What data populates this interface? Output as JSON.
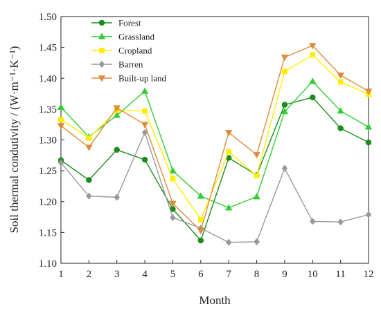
{
  "chart_data": {
    "type": "line",
    "title": "",
    "xlabel": "Month",
    "ylabel": "Soil thermal condutivity / (W·m⁻¹·K⁻¹)",
    "x": [
      1,
      2,
      3,
      4,
      5,
      6,
      7,
      8,
      9,
      10,
      11,
      12
    ],
    "x_ticks": [
      "1",
      "2",
      "3",
      "4",
      "5",
      "6",
      "7",
      "8",
      "9",
      "10",
      "11",
      "12"
    ],
    "xlim": [
      1,
      12
    ],
    "ylim": [
      1.1,
      1.5
    ],
    "y_ticks": [
      "1.10",
      "1.15",
      "1.20",
      "1.25",
      "1.30",
      "1.35",
      "1.40",
      "1.45",
      "1.50"
    ],
    "grid": false,
    "legend": "top-left",
    "series": [
      {
        "name": "Forest",
        "color": "#1a8c1a",
        "marker": "circle",
        "values": [
          1.267,
          1.235,
          1.284,
          1.268,
          1.188,
          1.137,
          1.271,
          1.243,
          1.357,
          1.369,
          1.319,
          1.296
        ]
      },
      {
        "name": "Grassland",
        "color": "#33cc33",
        "marker": "triangle-up",
        "values": [
          1.353,
          1.305,
          1.34,
          1.379,
          1.25,
          1.209,
          1.19,
          1.208,
          1.346,
          1.395,
          1.347,
          1.321
        ]
      },
      {
        "name": "Cropland",
        "color": "#ffee00",
        "marker": "square",
        "values": [
          1.333,
          1.303,
          1.348,
          1.347,
          1.237,
          1.171,
          1.281,
          1.242,
          1.411,
          1.438,
          1.394,
          1.374
        ]
      },
      {
        "name": "Barren",
        "color": "#999999",
        "marker": "diamond",
        "values": [
          1.263,
          1.209,
          1.207,
          1.312,
          1.174,
          1.157,
          1.134,
          1.135,
          1.254,
          1.168,
          1.167,
          1.179
        ]
      },
      {
        "name": "Built-up land",
        "color": "#e08a3c",
        "marker": "triangle-down",
        "values": [
          1.323,
          1.288,
          1.352,
          1.325,
          1.197,
          1.153,
          1.312,
          1.276,
          1.434,
          1.453,
          1.405,
          1.379
        ]
      }
    ]
  }
}
